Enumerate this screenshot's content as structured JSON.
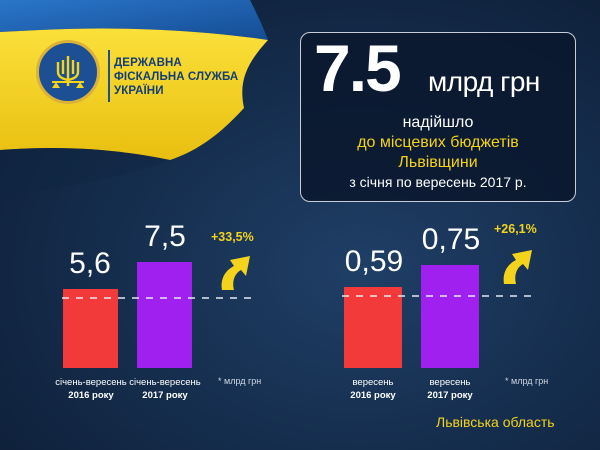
{
  "header": {
    "org_name_lines": [
      "ДЕРЖАВНА",
      "ФІСКАЛЬНА СЛУЖБА",
      "УКРАЇНИ"
    ]
  },
  "headline": {
    "value": "7.5",
    "unit": "млрд грн",
    "line1": "надійшло",
    "line2": "до місцевих бюджетів",
    "line3": "Львівщини",
    "line4": "з січня по вересень 2017 р."
  },
  "colors": {
    "bar_2016": "#f23a3a",
    "bar_2017": "#a020f0",
    "accent_yellow": "#f3d31c",
    "flag_blue": "#1b5fb4",
    "flag_yellow": "#f7d417"
  },
  "chart_data": [
    {
      "type": "bar",
      "categories": [
        "січень-вересень 2016 року",
        "січень-вересень 2017 року"
      ],
      "category_lines": [
        [
          "січень-вересень",
          "2016 року"
        ],
        [
          "січень-вересень",
          "2017 року"
        ]
      ],
      "values": [
        5.6,
        7.5
      ],
      "value_labels": [
        "5,6",
        "7,5"
      ],
      "change_label": "+33,5%",
      "unit_note": "* млрд грн",
      "ylim": [
        0,
        8
      ]
    },
    {
      "type": "bar",
      "categories": [
        "вересень 2016 року",
        "вересень 2017 року"
      ],
      "category_lines": [
        [
          "вересень",
          "2016 року"
        ],
        [
          "вересень",
          "2017 року"
        ]
      ],
      "values": [
        0.59,
        0.75
      ],
      "value_labels": [
        "0,59",
        "0,75"
      ],
      "change_label": "+26,1%",
      "unit_note": "* млрд грн",
      "ylim": [
        0,
        0.8
      ]
    }
  ],
  "footer": {
    "region": "Львівська область"
  }
}
